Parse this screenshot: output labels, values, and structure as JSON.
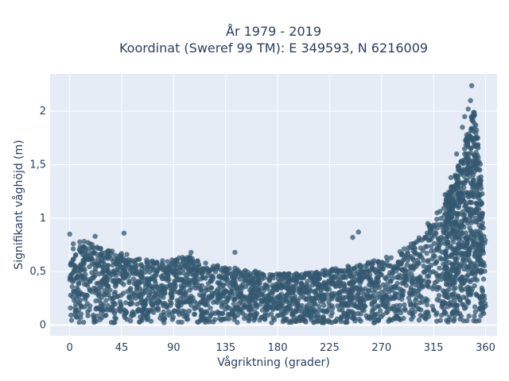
{
  "chart_data": {
    "type": "scatter",
    "title_line1": "År 1979 - 2019",
    "title_line2": "Koordinat (Sweref 99 TM): E 349593, N 6216009",
    "xlabel": "Vågriktning (grader)",
    "ylabel": "Signifikant våghöjd (m)",
    "xlim": [
      -17,
      370
    ],
    "ylim": [
      -0.1,
      2.35
    ],
    "x_ticks": [
      0,
      45,
      90,
      135,
      180,
      225,
      270,
      315,
      360
    ],
    "x_tick_labels": [
      "0",
      "45",
      "90",
      "135",
      "180",
      "225",
      "270",
      "315",
      "360"
    ],
    "y_ticks": [
      0,
      0.5,
      1,
      1.5,
      2
    ],
    "y_tick_labels": [
      "0",
      "0,5",
      "1",
      "1,5",
      "2"
    ],
    "grid": true,
    "marker_color": "#34586f",
    "envelope": {
      "x": [
        0,
        15,
        30,
        45,
        60,
        75,
        90,
        105,
        120,
        135,
        150,
        165,
        180,
        195,
        210,
        225,
        240,
        255,
        270,
        285,
        300,
        310,
        320,
        325,
        330,
        335,
        340,
        345,
        350,
        355,
        358,
        360
      ],
      "y_max": [
        0.8,
        0.78,
        0.72,
        0.68,
        0.62,
        0.6,
        0.62,
        0.65,
        0.58,
        0.55,
        0.52,
        0.5,
        0.48,
        0.48,
        0.5,
        0.52,
        0.55,
        0.58,
        0.62,
        0.68,
        0.8,
        0.92,
        1.05,
        1.18,
        1.3,
        1.45,
        1.6,
        1.85,
        2.05,
        1.6,
        1.1,
        0.8
      ],
      "y_min": 0.02
    },
    "outliers": [
      {
        "x": 0,
        "y": 0.85
      },
      {
        "x": 22,
        "y": 0.83
      },
      {
        "x": 47,
        "y": 0.86
      },
      {
        "x": 105,
        "y": 0.68
      },
      {
        "x": 143,
        "y": 0.68
      },
      {
        "x": 250,
        "y": 0.87
      },
      {
        "x": 245,
        "y": 0.82
      },
      {
        "x": 310,
        "y": 0.95
      },
      {
        "x": 318,
        "y": 1.05
      },
      {
        "x": 325,
        "y": 1.22
      },
      {
        "x": 330,
        "y": 1.38
      },
      {
        "x": 335,
        "y": 1.6
      },
      {
        "x": 340,
        "y": 1.85
      },
      {
        "x": 342,
        "y": 1.95
      },
      {
        "x": 345,
        "y": 2.02
      },
      {
        "x": 347,
        "y": 2.1
      },
      {
        "x": 348,
        "y": 2.24
      },
      {
        "x": 352,
        "y": 1.5
      },
      {
        "x": 356,
        "y": 1.35
      }
    ]
  }
}
